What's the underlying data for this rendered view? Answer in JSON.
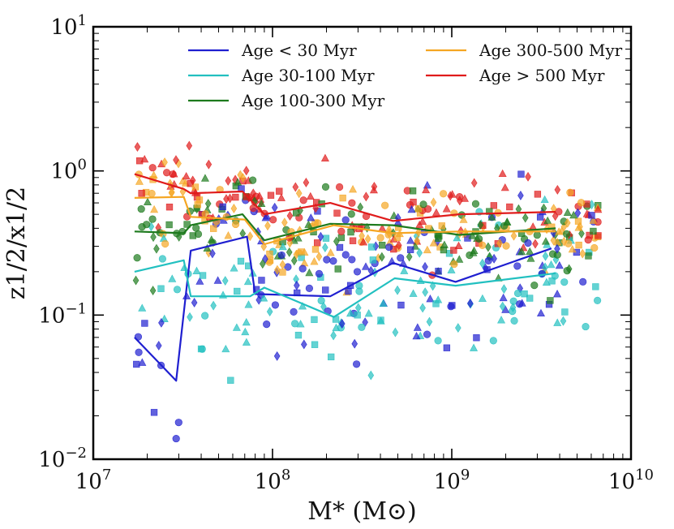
{
  "chart_data": {
    "type": "scatter",
    "xscale": "log",
    "yscale": "log",
    "xlim": [
      10000000.0,
      10000000000.0
    ],
    "ylim": [
      0.01,
      10
    ],
    "xlabel": "M* (M⊙)",
    "ylabel": "z1/2/x1/2",
    "xticks": [
      {
        "value": 10000000.0,
        "base": "10",
        "exp": "7"
      },
      {
        "value": 100000000.0,
        "base": "10",
        "exp": "8"
      },
      {
        "value": 1000000000.0,
        "base": "10",
        "exp": "9"
      },
      {
        "value": 10000000000.0,
        "base": "10",
        "exp": "10"
      }
    ],
    "yticks": [
      {
        "value": 0.01,
        "base": "10",
        "exp": "−2"
      },
      {
        "value": 0.1,
        "base": "10",
        "exp": "−1"
      },
      {
        "value": 1,
        "base": "10",
        "exp": "0"
      },
      {
        "value": 10,
        "base": "10",
        "exp": "1"
      }
    ],
    "legend_location": "top",
    "series": [
      {
        "name": "Age < 30 Myr",
        "color": "#1f1fd0",
        "median_line": {
          "x": [
            17000000.0,
            29000000.0,
            35000000.0,
            72000000.0,
            80000000.0,
            210000000.0,
            470000000.0,
            1050000000.0,
            3600000000.0
          ],
          "y": [
            0.07,
            0.035,
            0.28,
            0.35,
            0.14,
            0.135,
            0.23,
            0.17,
            0.29
          ]
        }
      },
      {
        "name": "Age 30-100 Myr",
        "color": "#22c0c0",
        "median_line": {
          "x": [
            17000000.0,
            32000000.0,
            35000000.0,
            75000000.0,
            90000000.0,
            220000000.0,
            480000000.0,
            1050000000.0,
            3800000000.0
          ],
          "y": [
            0.2,
            0.24,
            0.135,
            0.135,
            0.155,
            0.097,
            0.18,
            0.16,
            0.195
          ]
        }
      },
      {
        "name": "Age 100-300 Myr",
        "color": "#1d7a1d",
        "median_line": {
          "x": [
            17000000.0,
            32000000.0,
            35000000.0,
            68000000.0,
            90000000.0,
            210000000.0,
            470000000.0,
            1100000000.0,
            3800000000.0
          ],
          "y": [
            0.38,
            0.37,
            0.42,
            0.5,
            0.33,
            0.43,
            0.42,
            0.36,
            0.4
          ]
        }
      },
      {
        "name": "Age 300-500 Myr",
        "color": "#f5a623",
        "median_line": {
          "x": [
            17000000.0,
            32000000.0,
            35000000.0,
            70000000.0,
            90000000.0,
            220000000.0,
            470000000.0,
            1100000000.0,
            3800000000.0
          ],
          "y": [
            0.65,
            0.66,
            0.48,
            0.46,
            0.31,
            0.42,
            0.37,
            0.38,
            0.38
          ]
        }
      },
      {
        "name": "Age > 500 Myr",
        "color": "#e01b1b",
        "median_line": {
          "x": [
            17000000.0,
            32000000.0,
            35000000.0,
            68000000.0,
            90000000.0,
            210000000.0,
            470000000.0,
            1100000000.0,
            3800000000.0
          ],
          "y": [
            0.95,
            0.75,
            0.7,
            0.72,
            0.5,
            0.6,
            0.45,
            0.5,
            0.52
          ]
        }
      }
    ],
    "marker_shapes": [
      "circle",
      "square",
      "triangle",
      "diamond"
    ],
    "scatter_count": 640
  }
}
